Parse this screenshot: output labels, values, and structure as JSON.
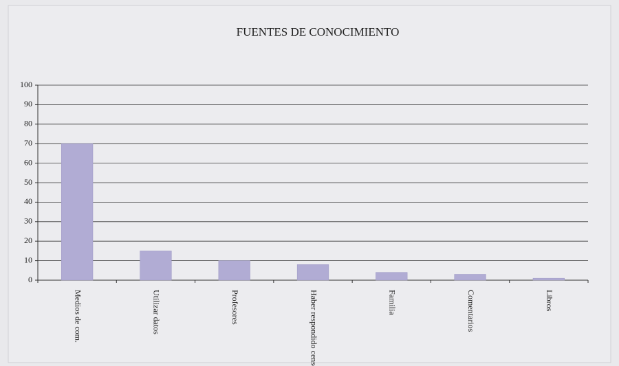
{
  "chart_data": {
    "type": "bar",
    "title": "FUENTES DE CONOCIMIENTO",
    "categories": [
      "Medios de com.",
      "Utilizar datos",
      "Profesores",
      "Haber respondido censos",
      "Familia",
      "Comentarios",
      "Libros"
    ],
    "values": [
      70,
      15,
      10,
      8,
      4,
      3,
      1
    ],
    "color": "#b1acd4",
    "ylim": [
      0,
      100
    ],
    "yticks": [
      0,
      10,
      20,
      30,
      40,
      50,
      60,
      70,
      80,
      90,
      100
    ],
    "grid": true
  }
}
